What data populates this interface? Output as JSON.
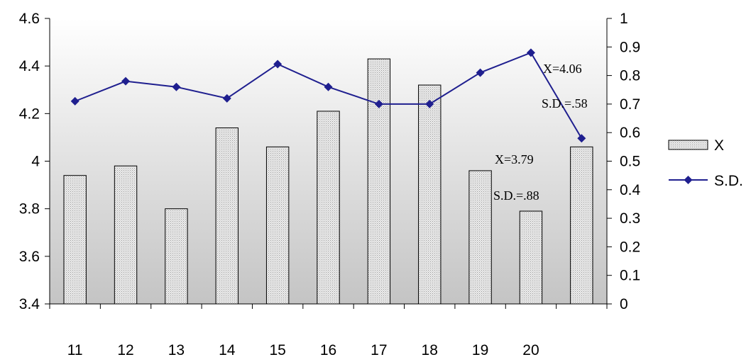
{
  "chart_data": {
    "type": "bar",
    "categories": [
      "11",
      "12",
      "13",
      "14",
      "15",
      "16",
      "17",
      "18",
      "19",
      "20",
      ""
    ],
    "series": [
      {
        "name": "X",
        "type": "bar",
        "axis": "left",
        "values": [
          3.94,
          3.98,
          3.8,
          4.14,
          4.06,
          4.21,
          4.43,
          4.32,
          3.96,
          3.79,
          4.06
        ]
      },
      {
        "name": "S.D.",
        "type": "line",
        "axis": "right",
        "values": [
          0.71,
          0.78,
          0.76,
          0.72,
          0.84,
          0.76,
          0.7,
          0.7,
          0.81,
          0.88,
          0.58
        ]
      }
    ],
    "y_left": {
      "ylim": [
        3.4,
        4.6
      ],
      "ticks": [
        "3.4",
        "3.6",
        "3.8",
        "4",
        "4.2",
        "4.4",
        "4.6"
      ]
    },
    "y_right": {
      "ylim": [
        0,
        1
      ],
      "ticks": [
        "0",
        "0.1",
        "0.2",
        "0.3",
        "0.4",
        "0.5",
        "0.6",
        "0.7",
        "0.8",
        "0.9",
        "1"
      ]
    },
    "annotations": [
      "X=4.06",
      "S.D.=.58",
      "X=3.79",
      "S.D.=.88"
    ],
    "legend_placement": "right",
    "grid": false,
    "plot_area_fill": "gradient white to grey",
    "colors": {
      "bar_fill": "#e8e8e8",
      "bar_stroke": "#000000",
      "line": "#1f1f8f",
      "marker": "#1f1f8f"
    }
  }
}
